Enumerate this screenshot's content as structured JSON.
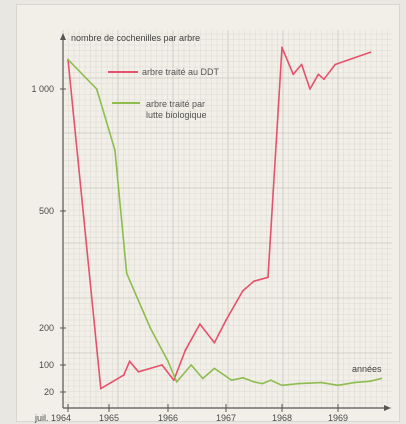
{
  "chart_data": {
    "type": "line",
    "ylabel": "nombre de cochenilles par arbre",
    "xlabel": "années",
    "y_tick_labels": [
      "20",
      "100",
      "200",
      "500",
      "1 000"
    ],
    "x_tick_labels": [
      "juil. 1964",
      "1965",
      "1966",
      "1967",
      "1968",
      "1969"
    ],
    "grid": true,
    "legend_position": "top-right",
    "series": [
      {
        "name": "arbre traité au DDT",
        "color": "#e5526b",
        "points": [
          [
            1964.5,
            1120
          ],
          [
            1964.9,
            30
          ],
          [
            1965.25,
            70
          ],
          [
            1965.35,
            110
          ],
          [
            1965.5,
            80
          ],
          [
            1965.7,
            90
          ],
          [
            1965.9,
            100
          ],
          [
            1966.1,
            55
          ],
          [
            1966.3,
            140
          ],
          [
            1966.55,
            210
          ],
          [
            1966.8,
            160
          ],
          [
            1967.0,
            220
          ],
          [
            1967.3,
            295
          ],
          [
            1967.5,
            320
          ],
          [
            1967.75,
            330
          ],
          [
            1968.0,
            1170
          ],
          [
            1968.2,
            1060
          ],
          [
            1968.35,
            1100
          ],
          [
            1968.5,
            1000
          ],
          [
            1968.65,
            1060
          ],
          [
            1968.75,
            1040
          ],
          [
            1968.95,
            1100
          ],
          [
            1969.6,
            1150
          ]
        ]
      },
      {
        "name": "arbre traité par lutte biologique",
        "color": "#8dbd4f",
        "points": [
          [
            1964.5,
            1120
          ],
          [
            1964.85,
            1000
          ],
          [
            1965.1,
            750
          ],
          [
            1965.3,
            340
          ],
          [
            1965.7,
            200
          ],
          [
            1966.0,
            110
          ],
          [
            1966.15,
            50
          ],
          [
            1966.4,
            100
          ],
          [
            1966.6,
            60
          ],
          [
            1966.8,
            90
          ],
          [
            1967.1,
            55
          ],
          [
            1967.3,
            62
          ],
          [
            1967.5,
            50
          ],
          [
            1967.65,
            45
          ],
          [
            1967.8,
            55
          ],
          [
            1968.0,
            40
          ],
          [
            1968.3,
            45
          ],
          [
            1968.7,
            48
          ],
          [
            1969.0,
            40
          ],
          [
            1969.3,
            48
          ],
          [
            1969.6,
            52
          ],
          [
            1969.8,
            60
          ]
        ]
      }
    ],
    "y_levels": [
      {
        "label": "20",
        "value": 20
      },
      {
        "label": "100",
        "value": 100
      },
      {
        "label": "200",
        "value": 200
      },
      {
        "label": "500",
        "value": 500
      },
      {
        "label": "1 000",
        "value": 1000
      }
    ],
    "x_levels": [
      {
        "label": "juil. 1964",
        "value": 1964.5
      },
      {
        "label": "1965",
        "value": 1965
      },
      {
        "label": "1966",
        "value": 1966
      },
      {
        "label": "1967",
        "value": 1967
      },
      {
        "label": "1968",
        "value": 1968
      },
      {
        "label": "1969",
        "value": 1969
      }
    ]
  }
}
